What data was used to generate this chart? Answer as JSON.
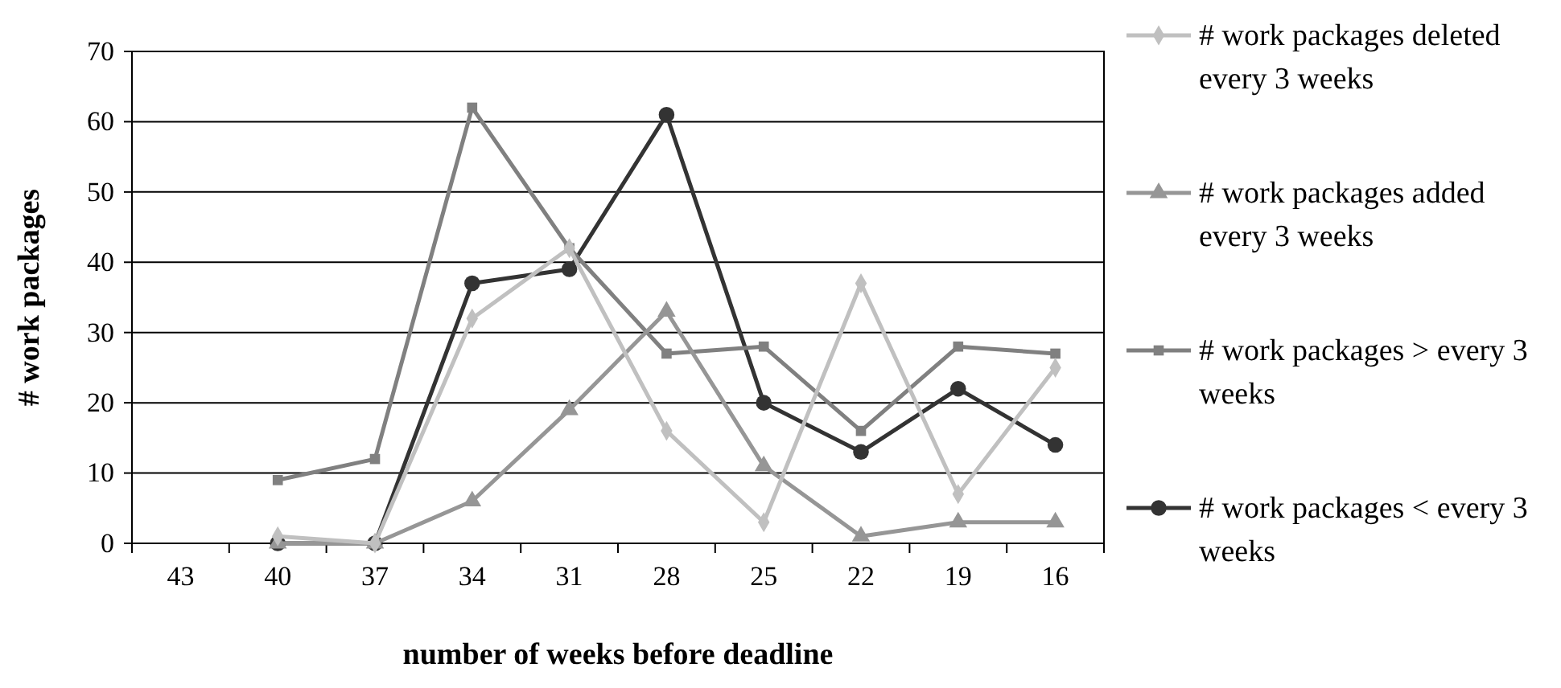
{
  "chart_data": {
    "type": "line",
    "xlabel": "number of weeks before deadline",
    "ylabel": "# work packages",
    "categories": [
      "43",
      "40",
      "37",
      "34",
      "31",
      "28",
      "25",
      "22",
      "19",
      "16"
    ],
    "ylim": [
      0,
      70
    ],
    "yticks": [
      0,
      10,
      20,
      30,
      40,
      50,
      60,
      70
    ],
    "grid": "y",
    "legend": "right",
    "series": [
      {
        "name": "# work packages deleted every 3 weeks",
        "color": "#c0c0c0",
        "marker": "diamond",
        "values": [
          null,
          1,
          0,
          32,
          42,
          16,
          3,
          37,
          7,
          25
        ]
      },
      {
        "name": "# work packages added every 3 weeks",
        "color": "#969696",
        "marker": "triangle",
        "values": [
          null,
          0,
          0,
          6,
          19,
          33,
          11,
          1,
          3,
          3
        ]
      },
      {
        "name": "# work packages > every 3 weeks",
        "color": "#808080",
        "marker": "square",
        "values": [
          null,
          9,
          12,
          62,
          42,
          27,
          28,
          16,
          28,
          27
        ]
      },
      {
        "name": "# work packages < every 3 weeks",
        "color": "#333333",
        "marker": "circle",
        "values": [
          null,
          0,
          0,
          37,
          39,
          61,
          20,
          13,
          22,
          14
        ]
      }
    ]
  }
}
